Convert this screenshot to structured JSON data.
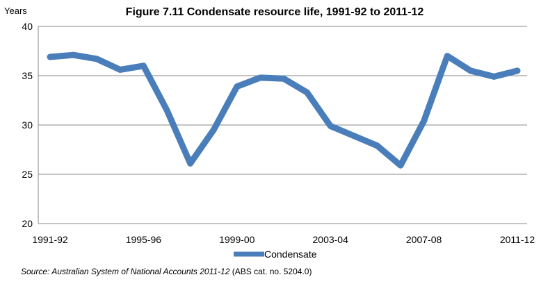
{
  "chart_data": {
    "type": "line",
    "title": "Figure 7.11 Condensate resource life, 1991-92 to 2011-12",
    "ylabel": "Years",
    "xlabel": "",
    "ylim": [
      20,
      40
    ],
    "yticks": [
      20,
      25,
      30,
      35,
      40
    ],
    "grid": true,
    "legend": "bottom",
    "line_color": "#4A7EBB",
    "categories": [
      "1991-92",
      "1992-93",
      "1993-94",
      "1994-95",
      "1995-96",
      "1996-97",
      "1997-98",
      "1998-99",
      "1999-00",
      "2000-01",
      "2001-02",
      "2002-03",
      "2003-04",
      "2004-05",
      "2005-06",
      "2006-07",
      "2007-08",
      "2008-09",
      "2009-10",
      "2010-11",
      "2011-12"
    ],
    "xtick_labels": [
      "1991-92",
      "1995-96",
      "1999-00",
      "2003-04",
      "2007-08",
      "2011-12"
    ],
    "series": [
      {
        "name": "Condensate",
        "values": [
          36.9,
          37.1,
          36.7,
          35.6,
          36.0,
          31.5,
          26.1,
          29.5,
          33.9,
          34.8,
          34.7,
          33.3,
          29.9,
          28.9,
          27.9,
          25.9,
          30.4,
          37.0,
          35.5,
          34.9,
          35.5
        ]
      }
    ]
  },
  "source": {
    "italic": "Source: Australian System of National Accounts 2011-12",
    "plain": " (ABS cat. no. 5204.0)"
  }
}
